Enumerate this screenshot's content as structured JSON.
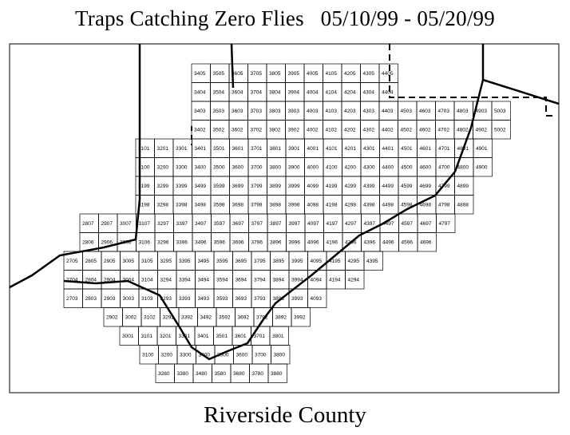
{
  "title": "Traps Catching Zero Flies   05/10/99 - 05/20/99",
  "footer_label": "Riverside County",
  "colors": {
    "ink": "#000000",
    "background": "#ffffff"
  },
  "grid_rows": [
    {
      "cells": [
        "3405",
        "3505",
        "3605",
        "3705",
        "3805",
        "3905",
        "4005",
        "4105",
        "4205",
        "4305",
        "4405"
      ]
    },
    {
      "cells": [
        "3404",
        "3504",
        "3604",
        "3704",
        "3804",
        "3904",
        "4004",
        "4104",
        "4204",
        "4304",
        "4404"
      ]
    },
    {
      "cells": [
        "3403",
        "3503",
        "3603",
        "3703",
        "3803",
        "3903",
        "4003",
        "4103",
        "4203",
        "4303",
        "4403",
        "4503",
        "4603",
        "4703",
        "4803",
        "4903",
        "5003"
      ]
    },
    {
      "cells": [
        "3402",
        "3502",
        "3602",
        "3702",
        "3802",
        "3902",
        "4002",
        "4102",
        "4202",
        "4302",
        "4402",
        "4502",
        "4602",
        "4702",
        "4802",
        "4902",
        "5002"
      ]
    },
    {
      "cells": [
        "3101",
        "3201",
        "3301",
        "3401",
        "3501",
        "3601",
        "3701",
        "3801",
        "3901",
        "4001",
        "4101",
        "4201",
        "4301",
        "4401",
        "4501",
        "4601",
        "4701",
        "4801",
        "4901"
      ]
    },
    {
      "cells": [
        "3100",
        "3200",
        "3300",
        "3400",
        "3500",
        "3600",
        "3700",
        "3800",
        "3900",
        "4000",
        "4100",
        "4200",
        "4300",
        "4400",
        "4500",
        "4600",
        "4700",
        "4800",
        "4900"
      ]
    },
    {
      "cells": [
        "3199",
        "3299",
        "3399",
        "3499",
        "3599",
        "3699",
        "3799",
        "3899",
        "3999",
        "4099",
        "4199",
        "4299",
        "4399",
        "4499",
        "4599",
        "4699",
        "4799",
        "4899"
      ]
    },
    {
      "cells": [
        "3198",
        "3298",
        "3398",
        "3498",
        "3598",
        "3698",
        "3798",
        "3898",
        "3998",
        "4098",
        "4198",
        "4298",
        "4398",
        "4498",
        "4598",
        "4698",
        "4798",
        "4898"
      ]
    },
    {
      "cells": [
        "2807",
        "2907",
        "3007",
        "3107",
        "3297",
        "3397",
        "3497",
        "3597",
        "3697",
        "3797",
        "3897",
        "3997",
        "4097",
        "4197",
        "4297",
        "4397",
        "4497",
        "4597",
        "4697",
        "4797"
      ]
    },
    {
      "cells": [
        "2806",
        "2906",
        "3006",
        "3106",
        "3296",
        "3396",
        "3496",
        "3596",
        "3696",
        "3796",
        "3896",
        "3996",
        "4096",
        "4196",
        "4296",
        "4396",
        "4496",
        "4596",
        "4696"
      ]
    },
    {
      "cells": [
        "2705",
        "2805",
        "2905",
        "3005",
        "3105",
        "3295",
        "3395",
        "3495",
        "3595",
        "3695",
        "3795",
        "3895",
        "3995",
        "4095",
        "4195",
        "4295",
        "4395"
      ]
    },
    {
      "cells": [
        "2704",
        "2804",
        "2904",
        "3004",
        "3104",
        "3294",
        "3394",
        "3494",
        "3594",
        "3694",
        "3794",
        "3894",
        "3994",
        "4094",
        "4194",
        "4294"
      ]
    },
    {
      "cells": [
        "2703",
        "2803",
        "2903",
        "3003",
        "3103",
        "3293",
        "3393",
        "3493",
        "3593",
        "3693",
        "3793",
        "3893",
        "3993",
        "4093"
      ]
    },
    {
      "cells": [
        "2902",
        "3002",
        "3102",
        "3292",
        "3392",
        "3492",
        "3592",
        "3692",
        "3792",
        "3892",
        "3992"
      ]
    },
    {
      "cells": [
        "3001",
        "3101",
        "3201",
        "3301",
        "3401",
        "3501",
        "3601",
        "3701",
        "3801"
      ]
    },
    {
      "cells": [
        "3100",
        "3200",
        "3300",
        "3400",
        "3500",
        "3600",
        "3700",
        "3800"
      ]
    },
    {
      "cells": [
        "3280",
        "3380",
        "3480",
        "3580",
        "3680",
        "3780",
        "3880"
      ]
    }
  ]
}
